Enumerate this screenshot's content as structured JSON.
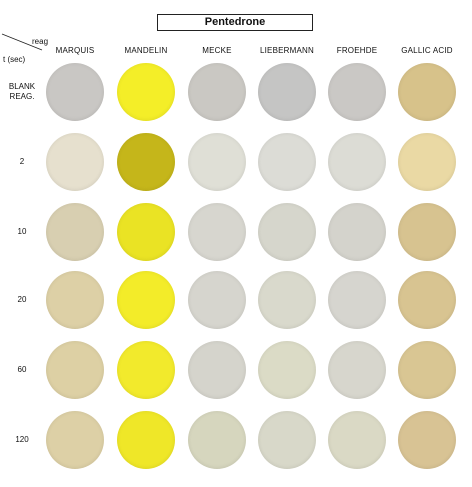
{
  "title": "Pentedrone",
  "corner": {
    "top": "reag",
    "bottom": "t (sec)"
  },
  "columns": [
    "MARQUIS",
    "MANDELIN",
    "MECKE",
    "LIEBERMANN",
    "FROEHDE",
    "GALLIC ACID"
  ],
  "rows": [
    {
      "label_lines": [
        "BLANK",
        "REAG."
      ],
      "colors": [
        "#c9c7c4",
        "#f4ee28",
        "#cac8c3",
        "#c5c5c4",
        "#cac8c5",
        "#d7c28a"
      ]
    },
    {
      "label_lines": [
        "2"
      ],
      "colors": [
        "#e6e0ce",
        "#c5b61a",
        "#dfdfd6",
        "#dcdcd6",
        "#dcdcd5",
        "#ead9a4"
      ]
    },
    {
      "label_lines": [
        "10"
      ],
      "colors": [
        "#d8cfb1",
        "#eae324",
        "#d7d6cf",
        "#d6d6cc",
        "#d4d3cc",
        "#d7c390"
      ]
    },
    {
      "label_lines": [
        "20"
      ],
      "colors": [
        "#ddd0a6",
        "#f3ec29",
        "#d6d5ce",
        "#d9d9cc",
        "#d6d5cf",
        "#d8c491"
      ]
    },
    {
      "label_lines": [
        "60"
      ],
      "colors": [
        "#ddd0a4",
        "#f2ea2c",
        "#d5d4cc",
        "#dbdbc6",
        "#d7d6cd",
        "#d9c693"
      ]
    },
    {
      "label_lines": [
        "120"
      ],
      "colors": [
        "#ddd0a6",
        "#efe728",
        "#d6d6be",
        "#d8d8c9",
        "#dad9c5",
        "#d8c394"
      ]
    }
  ]
}
